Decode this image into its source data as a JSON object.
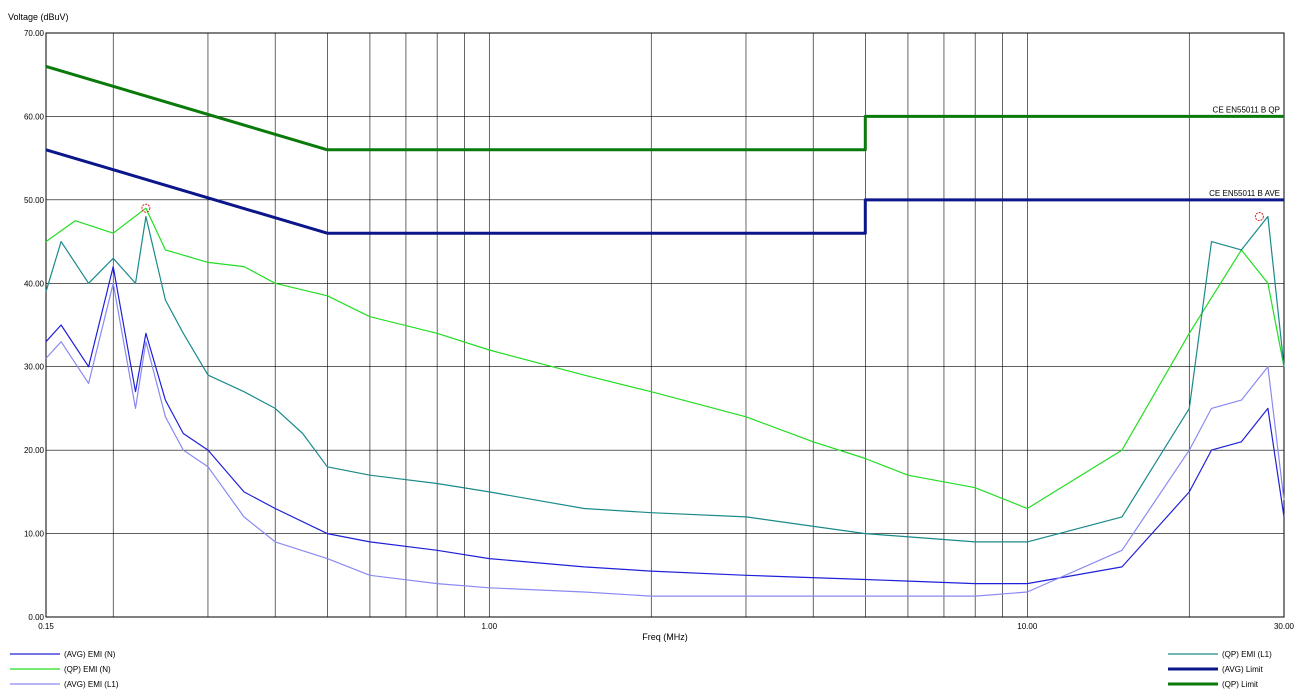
{
  "chart_data": {
    "type": "line",
    "ylabel": "Voltage (dBuV)",
    "xlabel": "Freq (MHz)",
    "x_scale": "log",
    "xlim": [
      0.15,
      30
    ],
    "ylim": [
      0,
      70
    ],
    "grid": true,
    "x_tick_labels": [
      {
        "x": 0.15,
        "label": "0.15"
      },
      {
        "x": 1,
        "label": "1.00"
      },
      {
        "x": 10,
        "label": "10.00"
      },
      {
        "x": 30,
        "label": "30.00"
      }
    ],
    "y_tick_labels": [
      "0.00",
      "10.00",
      "20.00",
      "30.00",
      "40.00",
      "50.00",
      "60.00",
      "70.00"
    ],
    "limit_annotations": [
      {
        "text": "CE EN55011 B QP",
        "y": 60
      },
      {
        "text": "CE EN55011 B AVE",
        "y": 50
      }
    ],
    "legend_left": [
      "(AVG) EMI (N)",
      "(QP) EMI (N)",
      "(AVG) EMI (L1)"
    ],
    "legend_right": [
      "(QP) EMI (L1)",
      "(AVG) Limit",
      "(QP) Limit"
    ],
    "series": [
      {
        "name": "(QP) Limit",
        "color": "#0a7a0a",
        "x": [
          0.15,
          0.5,
          0.5,
          5,
          5,
          30
        ],
        "y": [
          66,
          56,
          56,
          56,
          60,
          60
        ]
      },
      {
        "name": "(AVG) Limit",
        "color": "#0a168a",
        "x": [
          0.15,
          0.5,
          0.5,
          5,
          5,
          30
        ],
        "y": [
          56,
          46,
          46,
          46,
          50,
          50
        ]
      },
      {
        "name": "(QP) EMI (N)",
        "color": "#22dd22",
        "x": [
          0.15,
          0.17,
          0.2,
          0.23,
          0.25,
          0.3,
          0.35,
          0.4,
          0.5,
          0.6,
          0.8,
          1.0,
          1.5,
          2.0,
          3.0,
          4.0,
          5.0,
          6.0,
          8.0,
          10,
          15,
          20,
          25,
          28,
          30
        ],
        "y": [
          45,
          47.5,
          46,
          49,
          44,
          42.5,
          42,
          40,
          38.5,
          36,
          34,
          32,
          29,
          27,
          24,
          21,
          19,
          17,
          15.5,
          13,
          20,
          34,
          44,
          40,
          30
        ]
      },
      {
        "name": "(QP) EMI (L1)",
        "color": "#1a8a8a",
        "x": [
          0.15,
          0.16,
          0.18,
          0.2,
          0.22,
          0.23,
          0.25,
          0.27,
          0.3,
          0.35,
          0.4,
          0.45,
          0.5,
          0.6,
          0.8,
          1.0,
          1.5,
          2,
          3,
          5,
          8,
          10,
          15,
          20,
          22,
          25,
          28,
          30
        ],
        "y": [
          39,
          45,
          40,
          43,
          40,
          48,
          38,
          34,
          29,
          27,
          25,
          22,
          18,
          17,
          16,
          15,
          13,
          12.5,
          12,
          10,
          9,
          9,
          12,
          25,
          45,
          44,
          48,
          30
        ]
      },
      {
        "name": "(AVG) EMI (N)",
        "color": "#2020d8",
        "x": [
          0.15,
          0.16,
          0.18,
          0.2,
          0.22,
          0.23,
          0.25,
          0.27,
          0.3,
          0.35,
          0.4,
          0.5,
          0.6,
          0.8,
          1.0,
          1.5,
          2,
          3,
          5,
          8,
          10,
          15,
          20,
          22,
          25,
          28,
          30
        ],
        "y": [
          33,
          35,
          30,
          42,
          27,
          34,
          26,
          22,
          20,
          15,
          13,
          10,
          9,
          8,
          7,
          6,
          5.5,
          5,
          4.5,
          4,
          4,
          6,
          15,
          20,
          21,
          25,
          12
        ]
      },
      {
        "name": "(AVG) EMI (L1)",
        "color": "#8a8af2",
        "x": [
          0.15,
          0.16,
          0.18,
          0.2,
          0.22,
          0.23,
          0.25,
          0.27,
          0.3,
          0.35,
          0.4,
          0.5,
          0.6,
          0.8,
          1.0,
          1.5,
          2,
          3,
          5,
          8,
          10,
          15,
          20,
          22,
          25,
          28,
          30
        ],
        "y": [
          31,
          33,
          28,
          40,
          25,
          33,
          24,
          20,
          18,
          12,
          9,
          7,
          5,
          4,
          3.5,
          3,
          2.5,
          2.5,
          2.5,
          2.5,
          3,
          8,
          20,
          25,
          26,
          30,
          14
        ]
      }
    ],
    "peak_markers": [
      {
        "x": 0.23,
        "y": 49
      },
      {
        "x": 27,
        "y": 48
      }
    ]
  }
}
